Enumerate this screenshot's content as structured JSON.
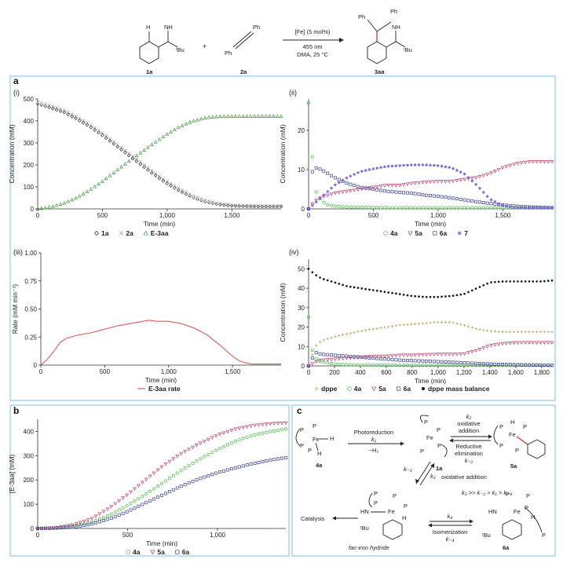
{
  "colors": {
    "1a": "#333333",
    "2a": "#9a9a9a",
    "E3aa": "#3f9a3a",
    "4a": "#3fbf3a",
    "5a": "#c2406a",
    "6a": "#3a3f9a",
    "7": "#7a6ad8",
    "dppe": "#b8a860",
    "balance": "#1a1a1a",
    "rate": "#e05a5a",
    "panel_border": "#a9d3ee",
    "phosphorus": "#7a2aa0",
    "highlight": "#d8232a"
  },
  "scheme": {
    "reactant_a": "1a",
    "reactant_b": "2a",
    "product": "3aa",
    "plus": "+",
    "catalyst": "[Fe] (5 mol%)",
    "conditions1": "455 nm",
    "conditions2": "DMA, 25 °C",
    "atoms": {
      "H": "H",
      "NH": "NH",
      "tBu": "ᵗBu",
      "Ph": "Ph"
    }
  },
  "panels": {
    "a": {
      "letter": "a",
      "i": "(i)",
      "ii": "(ii)",
      "iii": "(iii)",
      "iv": "(iv)"
    },
    "b": {
      "letter": "b"
    },
    "c": {
      "letter": "c"
    }
  },
  "chart_data": [
    {
      "id": "a-i",
      "type": "scatter",
      "xlabel": "Time (min)",
      "ylabel": "Concentration (mM)",
      "xlim": [
        0,
        1880
      ],
      "ylim": [
        0,
        500
      ],
      "xticks": [
        0,
        500,
        1000,
        1500
      ],
      "xticklabels": [
        "0",
        "500",
        "1,000",
        "1,500"
      ],
      "yticks": [
        0,
        100,
        200,
        300,
        400,
        500
      ],
      "yticklabels": [
        "0",
        "100",
        "200",
        "300",
        "400",
        "500"
      ],
      "legend": [
        "1a",
        "2a",
        "E-3aa"
      ],
      "legend_placement": "bottom",
      "series": [
        {
          "name": "1a",
          "marker": "diamond",
          "x": [
            0,
            100,
            200,
            300,
            400,
            500,
            600,
            700,
            800,
            900,
            1000,
            1100,
            1200,
            1300,
            1400,
            1500,
            1600,
            1700,
            1800,
            1880
          ],
          "y": [
            478,
            460,
            440,
            410,
            375,
            335,
            290,
            245,
            200,
            155,
            115,
            80,
            52,
            32,
            20,
            14,
            12,
            11,
            11,
            11
          ]
        },
        {
          "name": "2a",
          "marker": "cross",
          "x": [
            0,
            100,
            200,
            300,
            400,
            500,
            600,
            700,
            800,
            900,
            1000,
            1100,
            1200,
            1300,
            1400,
            1500,
            1600,
            1700,
            1800,
            1880
          ],
          "y": [
            485,
            470,
            450,
            420,
            385,
            345,
            300,
            255,
            210,
            165,
            125,
            90,
            60,
            38,
            24,
            17,
            14,
            13,
            13,
            13
          ]
        },
        {
          "name": "E-3aa",
          "marker": "triangle",
          "x": [
            0,
            100,
            200,
            300,
            400,
            500,
            600,
            700,
            800,
            900,
            1000,
            1100,
            1200,
            1300,
            1400,
            1500,
            1600,
            1700,
            1800,
            1880
          ],
          "y": [
            0,
            8,
            25,
            50,
            85,
            125,
            170,
            215,
            258,
            300,
            340,
            375,
            400,
            415,
            420,
            421,
            421,
            421,
            421,
            421
          ]
        }
      ]
    },
    {
      "id": "a-ii",
      "type": "scatter",
      "xlabel": "Time (min)",
      "ylabel": "Concentration (mM)",
      "xlim": [
        0,
        1880
      ],
      "ylim": [
        0,
        28
      ],
      "xticks": [
        0,
        500,
        1000,
        1500
      ],
      "xticklabels": [
        "0",
        "500",
        "1,000",
        "1,500"
      ],
      "yticks": [
        0,
        10,
        20
      ],
      "yticklabels": [
        "0",
        "10",
        "20"
      ],
      "legend": [
        "4a",
        "5a",
        "6a",
        "7"
      ],
      "legend_placement": "bottom",
      "series": [
        {
          "name": "4a",
          "marker": "circle",
          "x": [
            0,
            20,
            40,
            60,
            100,
            150,
            200,
            300,
            400,
            600,
            800,
            1000,
            1200,
            1400,
            1600,
            1880
          ],
          "y": [
            27,
            17,
            9,
            4,
            2,
            1,
            0.7,
            0.5,
            0.4,
            0.3,
            0.3,
            0.3,
            0.3,
            0.3,
            0.3,
            0.3
          ]
        },
        {
          "name": "5a",
          "marker": "triangle-down",
          "x": [
            0,
            50,
            100,
            200,
            300,
            400,
            500,
            600,
            700,
            800,
            900,
            1000,
            1100,
            1200,
            1300,
            1400,
            1500,
            1600,
            1700,
            1800,
            1880
          ],
          "y": [
            0,
            2,
            3,
            4,
            4.5,
            5,
            5.5,
            6,
            6,
            6.5,
            6.8,
            7,
            7,
            7.5,
            8,
            9,
            10.5,
            11.5,
            12,
            12,
            12
          ]
        },
        {
          "name": "6a",
          "marker": "square",
          "x": [
            0,
            20,
            50,
            100,
            150,
            200,
            300,
            400,
            500,
            600,
            700,
            800,
            900,
            1000,
            1100,
            1200,
            1300,
            1400,
            1500,
            1600,
            1700,
            1800,
            1880
          ],
          "y": [
            0,
            9,
            10.5,
            10,
            9,
            8,
            6.5,
            5.5,
            5,
            4.5,
            4.2,
            4,
            3.5,
            3.2,
            2.8,
            2.3,
            1.8,
            1.4,
            1,
            0.7,
            0.5,
            0.4,
            0.3
          ]
        },
        {
          "name": "7",
          "marker": "asterisk",
          "x": [
            0,
            100,
            200,
            300,
            400,
            500,
            600,
            700,
            800,
            900,
            1000,
            1100,
            1200,
            1300,
            1400,
            1500,
            1600,
            1700,
            1800,
            1880
          ],
          "y": [
            0,
            3,
            6,
            8,
            9.5,
            10.2,
            10.8,
            11,
            11.2,
            11.2,
            11,
            10.5,
            9,
            6,
            2.5,
            0.8,
            0.3,
            0.2,
            0.2,
            0.2
          ]
        }
      ]
    },
    {
      "id": "a-iii",
      "type": "line",
      "xlabel": "Time (min)",
      "ylabel": "Rate (mM min⁻¹)",
      "xlim": [
        0,
        1880
      ],
      "ylim": [
        0,
        1.0
      ],
      "xticks": [
        0,
        500,
        1000,
        1500
      ],
      "xticklabels": [
        "0",
        "500",
        "1,000",
        "1,500"
      ],
      "yticks": [
        0,
        0.25,
        0.5,
        0.75,
        1.0
      ],
      "yticklabels": [
        "0",
        "0.25",
        "0.50",
        "0.75",
        "1.00"
      ],
      "legend": [
        "E-3aa rate"
      ],
      "legend_placement": "bottom",
      "series": [
        {
          "name": "E-3aa rate",
          "x": [
            0,
            50,
            100,
            150,
            200,
            300,
            400,
            500,
            600,
            700,
            800,
            850,
            900,
            1000,
            1100,
            1200,
            1300,
            1400,
            1500,
            1550,
            1600,
            1650,
            1700,
            1880
          ],
          "y": [
            0,
            0.05,
            0.12,
            0.2,
            0.24,
            0.27,
            0.29,
            0.32,
            0.35,
            0.37,
            0.39,
            0.4,
            0.39,
            0.39,
            0.37,
            0.33,
            0.27,
            0.18,
            0.08,
            0.04,
            0.02,
            0.01,
            0.01,
            0.01
          ]
        }
      ]
    },
    {
      "id": "a-iv",
      "type": "scatter",
      "xlabel": "Time (min)",
      "ylabel": "Concentration (mM)",
      "xlim": [
        0,
        1880
      ],
      "ylim": [
        0,
        55
      ],
      "xticks": [
        0,
        200,
        400,
        600,
        800,
        1000,
        1200,
        1400,
        1600,
        1800
      ],
      "xticklabels": [
        "0",
        "200",
        "400",
        "600",
        "800",
        "1,000",
        "1,200",
        "1,400",
        "1,600",
        "1,800"
      ],
      "yticks": [
        0,
        10,
        20,
        30,
        40,
        50
      ],
      "yticklabels": [
        "0",
        "10",
        "20",
        "30",
        "40",
        "50"
      ],
      "legend": [
        "dppe",
        "4a",
        "5a",
        "6a",
        "dppe mass balance"
      ],
      "legend_placement": "bottom",
      "series": [
        {
          "name": "dppe",
          "marker": "plus",
          "x": [
            0,
            50,
            100,
            200,
            300,
            400,
            500,
            600,
            700,
            800,
            900,
            1000,
            1100,
            1200,
            1300,
            1400,
            1500,
            1600,
            1700,
            1800,
            1880
          ],
          "y": [
            0,
            10,
            13,
            15,
            16.5,
            18,
            19,
            20,
            21,
            21.5,
            22,
            22.5,
            22.5,
            21,
            19,
            18,
            17.5,
            17.5,
            17.5,
            17.5,
            17.5
          ]
        },
        {
          "name": "4a",
          "marker": "circle",
          "x": [
            0,
            20,
            50,
            100,
            200,
            300,
            400,
            600,
            800,
            1000,
            1200,
            1400,
            1600,
            1880
          ],
          "y": [
            25,
            10,
            4,
            2,
            1,
            0.6,
            0.5,
            0.4,
            0.3,
            0.3,
            0.3,
            0.3,
            0.3,
            0.3
          ]
        },
        {
          "name": "5a",
          "marker": "triangle-down",
          "x": [
            0,
            50,
            100,
            200,
            300,
            400,
            500,
            600,
            700,
            800,
            900,
            1000,
            1100,
            1200,
            1300,
            1400,
            1500,
            1600,
            1700,
            1800,
            1880
          ],
          "y": [
            0,
            2,
            3,
            3.5,
            4,
            4.5,
            5,
            5,
            5.5,
            5.5,
            5.8,
            6,
            6,
            6.2,
            8,
            10.5,
            11.5,
            12,
            12,
            12,
            12
          ]
        },
        {
          "name": "6a",
          "marker": "square",
          "x": [
            0,
            50,
            100,
            200,
            300,
            400,
            500,
            600,
            700,
            800,
            900,
            1000,
            1100,
            1200,
            1300,
            1400,
            1500,
            1600,
            1700,
            1800,
            1880
          ],
          "y": [
            0,
            7,
            6,
            5.5,
            5,
            4.5,
            4,
            3.5,
            3,
            2.7,
            2.5,
            2.2,
            1.9,
            1.6,
            1.3,
            1,
            0.8,
            0.6,
            0.5,
            0.4,
            0.3
          ]
        },
        {
          "name": "dppe mass balance",
          "marker": "dot",
          "x": [
            0,
            50,
            100,
            150,
            200,
            300,
            400,
            500,
            600,
            700,
            800,
            900,
            1000,
            1100,
            1200,
            1300,
            1400,
            1500,
            1600,
            1700,
            1800,
            1880
          ],
          "y": [
            50,
            47,
            45,
            44,
            43,
            41,
            40,
            39,
            38,
            37,
            36,
            35.5,
            35.5,
            36,
            37,
            40,
            43,
            43.5,
            43.5,
            43.5,
            43.5,
            44
          ]
        }
      ]
    },
    {
      "id": "b",
      "type": "scatter",
      "xlabel": "Time (min)",
      "ylabel": "[E-3aa] (mM)",
      "xlim": [
        0,
        1380
      ],
      "ylim": [
        0,
        450
      ],
      "xticks": [
        0,
        500,
        1000
      ],
      "xticklabels": [
        "0",
        "500",
        "1,000"
      ],
      "yticks": [
        0,
        100,
        200,
        300,
        400
      ],
      "yticklabels": [
        "0",
        "100",
        "200",
        "300",
        "400"
      ],
      "legend": [
        "4a",
        "5a",
        "6a"
      ],
      "legend_placement": "bottom",
      "series": [
        {
          "name": "4a",
          "marker": "circle",
          "x": [
            0,
            100,
            200,
            300,
            400,
            500,
            600,
            700,
            800,
            900,
            1000,
            1100,
            1200,
            1300,
            1380
          ],
          "y": [
            0,
            2,
            10,
            25,
            55,
            95,
            140,
            190,
            240,
            285,
            325,
            360,
            385,
            400,
            410
          ]
        },
        {
          "name": "5a",
          "marker": "triangle-down",
          "x": [
            0,
            100,
            200,
            300,
            400,
            500,
            600,
            700,
            800,
            900,
            1000,
            1100,
            1200,
            1300,
            1380
          ],
          "y": [
            0,
            3,
            15,
            40,
            85,
            140,
            200,
            260,
            310,
            350,
            385,
            410,
            425,
            432,
            435
          ]
        },
        {
          "name": "6a",
          "marker": "square",
          "x": [
            0,
            100,
            200,
            300,
            400,
            500,
            600,
            700,
            800,
            900,
            1000,
            1100,
            1200,
            1300,
            1380
          ],
          "y": [
            0,
            1,
            6,
            18,
            40,
            70,
            105,
            140,
            175,
            205,
            230,
            250,
            268,
            282,
            292
          ]
        }
      ]
    }
  ],
  "mechanism": {
    "photoreduction": "Photoreduction",
    "k1": "k₁",
    "minus_h2": "−H₂",
    "oxidative_addition": "oxidative",
    "addition": "addition",
    "k2": "k₂",
    "reductive": "Reductive",
    "elimination": "elimination",
    "km2": "k₋₂",
    "k3": "k₃",
    "km3": "k₋₃",
    "sub_1a": "1a",
    "oxadd2": "oxidative addition",
    "rate_order": "k₃ >> k₋₂ > k₁ > k₋₄",
    "catalysis": "Catalysis",
    "k4": "k₄",
    "isomerization": "Isomerization",
    "km4": "k₋₄",
    "fac_label": "fac-iron hydride",
    "labels": {
      "4a": "4a",
      "5a": "5a",
      "6a": "6a"
    },
    "atoms": {
      "Fe": "Fe",
      "P": "P",
      "H": "H",
      "HN": "HN",
      "tBu": "ᵗBu"
    }
  }
}
